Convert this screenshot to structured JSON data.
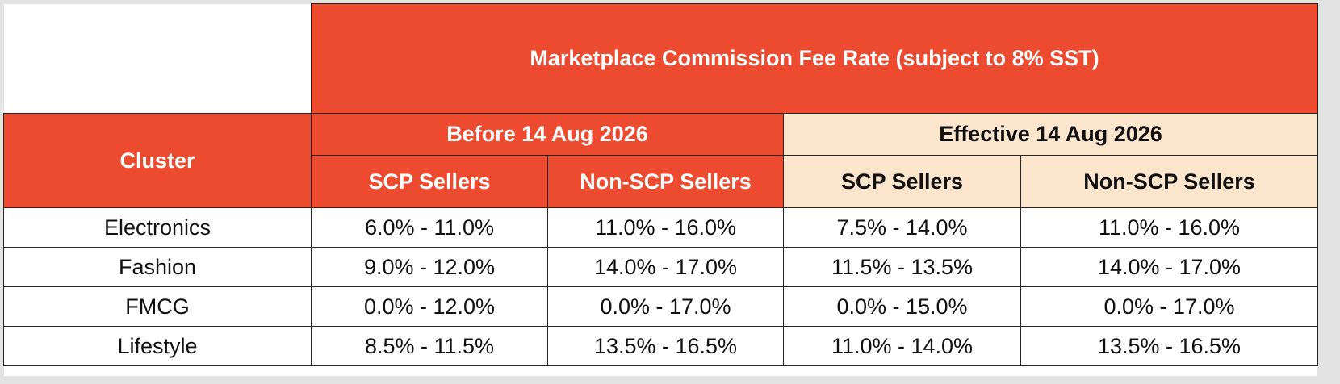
{
  "table": {
    "title": "Marketplace Commission Fee Rate (subject to 8% SST)",
    "cluster_header": "Cluster",
    "periods": [
      {
        "label": "Before 14 Aug 2026"
      },
      {
        "label": "Effective 14 Aug 2026"
      }
    ],
    "seller_headers": [
      "SCP Sellers",
      "Non-SCP Sellers",
      "SCP Sellers",
      "Non-SCP Sellers"
    ],
    "rows": [
      {
        "cluster": "Electronics",
        "values": [
          "6.0% - 11.0%",
          "11.0% - 16.0%",
          "7.5% - 14.0%",
          "11.0% - 16.0%"
        ]
      },
      {
        "cluster": "Fashion",
        "values": [
          "9.0% - 12.0%",
          "14.0% - 17.0%",
          "11.5% - 13.5%",
          "14.0% - 17.0%"
        ]
      },
      {
        "cluster": "FMCG",
        "values": [
          "0.0% - 12.0%",
          "0.0% - 17.0%",
          "0.0% - 15.0%",
          "0.0% - 17.0%"
        ]
      },
      {
        "cluster": "Lifestyle",
        "values": [
          "8.5% - 11.5%",
          "13.5% - 16.5%",
          "11.0% - 14.0%",
          "13.5% - 16.5%"
        ]
      }
    ]
  },
  "colors": {
    "header_red": "#ec4b2f",
    "header_cream": "#fbe5cd",
    "border": "#262626",
    "frame_gray": "#e3e3e3"
  }
}
